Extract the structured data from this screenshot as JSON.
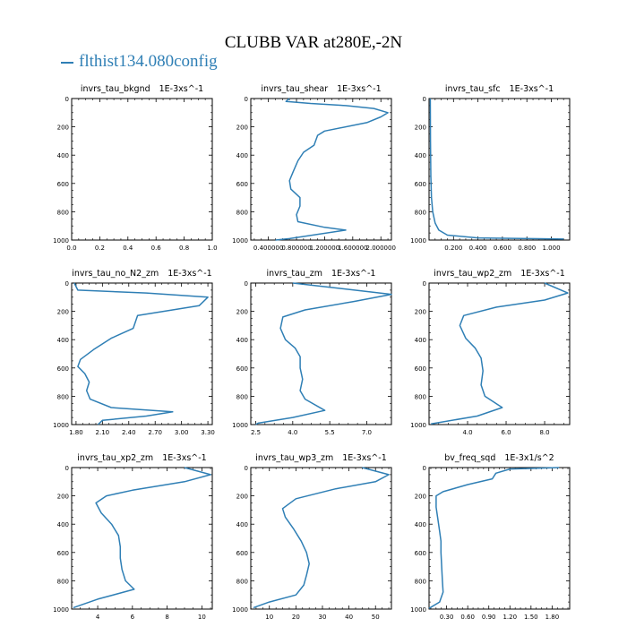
{
  "title": "CLUBB VAR at280E,-2N",
  "legend": {
    "label": "flthist134.080config",
    "color": "#2f7fb5"
  },
  "chart_data": [
    {
      "type": "line",
      "title": "invrs_tau_bkgnd",
      "units": "1E-3xs^-1",
      "xlim": [
        0,
        1.0
      ],
      "ylim": [
        1000,
        0
      ],
      "xticks": [
        0.0,
        0.2,
        0.4,
        0.6,
        0.8,
        1.0
      ],
      "xtick_labels": [
        "0.0",
        "0.2",
        "0.4",
        "0.6",
        "0.8",
        "1.0"
      ],
      "yticks": [
        0,
        200,
        400,
        600,
        800,
        1000
      ],
      "ytick_labels": [
        "0",
        "200",
        "400",
        "600",
        "800",
        "1000"
      ],
      "series": [
        {
          "points": []
        }
      ]
    },
    {
      "type": "line",
      "title": "invrs_tau_shear",
      "units": "1E-3xs^-1",
      "xlim": [
        0.15,
        2.15
      ],
      "ylim": [
        1000,
        0
      ],
      "xticks": [
        0.4,
        0.8,
        1.2,
        1.6,
        2.0
      ],
      "xtick_labels": [
        "0.400000",
        "0.800000",
        "1.200000",
        "1.600000",
        "2.000000"
      ],
      "yticks": [
        0,
        200,
        400,
        600,
        800,
        1000
      ],
      "ytick_labels": [
        "0",
        "200",
        "400",
        "600",
        "800",
        "1000"
      ],
      "series": [
        {
          "points": [
            [
              0.7,
              0
            ],
            [
              0.65,
              20
            ],
            [
              1.0,
              35
            ],
            [
              1.5,
              50
            ],
            [
              1.9,
              70
            ],
            [
              2.1,
              100
            ],
            [
              2.0,
              130
            ],
            [
              1.8,
              170
            ],
            [
              1.2,
              230
            ],
            [
              1.1,
              260
            ],
            [
              1.05,
              330
            ],
            [
              0.9,
              380
            ],
            [
              0.82,
              440
            ],
            [
              0.75,
              520
            ],
            [
              0.7,
              580
            ],
            [
              0.72,
              640
            ],
            [
              0.85,
              700
            ],
            [
              0.85,
              760
            ],
            [
              0.8,
              820
            ],
            [
              0.82,
              870
            ],
            [
              1.2,
              910
            ],
            [
              1.5,
              930
            ],
            [
              0.7,
              990
            ],
            [
              0.5,
              1000
            ]
          ]
        }
      ]
    },
    {
      "type": "line",
      "title": "invrs_tau_sfc",
      "units": "1E-3xs^-1",
      "xlim": [
        0.0,
        1.15
      ],
      "ylim": [
        1000,
        0
      ],
      "xticks": [
        0.2,
        0.4,
        0.6,
        0.8,
        1.0
      ],
      "xtick_labels": [
        "0.200",
        "0.400",
        "0.600",
        "0.800",
        "1.000"
      ],
      "yticks": [
        0,
        200,
        400,
        600,
        800,
        1000
      ],
      "ytick_labels": [
        "0",
        "200",
        "400",
        "600",
        "800",
        "1000"
      ],
      "series": [
        {
          "points": [
            [
              0.01,
              0
            ],
            [
              0.012,
              300
            ],
            [
              0.015,
              550
            ],
            [
              0.02,
              700
            ],
            [
              0.03,
              800
            ],
            [
              0.05,
              880
            ],
            [
              0.08,
              930
            ],
            [
              0.15,
              965
            ],
            [
              0.4,
              985
            ],
            [
              1.1,
              993
            ]
          ]
        }
      ]
    },
    {
      "type": "line",
      "title": "invrs_tau_no_N2_zm",
      "units": "1E-3xs^-1",
      "xlim": [
        1.75,
        3.35
      ],
      "ylim": [
        1000,
        0
      ],
      "xticks": [
        1.8,
        2.1,
        2.4,
        2.7,
        3.0,
        3.3
      ],
      "xtick_labels": [
        "1.80",
        "2.10",
        "2.40",
        "2.70",
        "3.00",
        "3.30"
      ],
      "yticks": [
        0,
        200,
        400,
        600,
        800,
        1000
      ],
      "ytick_labels": [
        "0",
        "200",
        "400",
        "600",
        "800",
        "1000"
      ],
      "series": [
        {
          "points": [
            [
              1.78,
              0
            ],
            [
              1.82,
              50
            ],
            [
              2.6,
              70
            ],
            [
              3.3,
              100
            ],
            [
              3.2,
              160
            ],
            [
              2.5,
              230
            ],
            [
              2.45,
              320
            ],
            [
              2.2,
              390
            ],
            [
              2.0,
              470
            ],
            [
              1.85,
              540
            ],
            [
              1.82,
              590
            ],
            [
              1.9,
              640
            ],
            [
              1.95,
              700
            ],
            [
              1.92,
              760
            ],
            [
              1.96,
              820
            ],
            [
              2.2,
              880
            ],
            [
              2.9,
              910
            ],
            [
              2.6,
              940
            ],
            [
              2.1,
              970
            ],
            [
              2.05,
              1000
            ]
          ]
        }
      ]
    },
    {
      "type": "line",
      "title": "invrs_tau_zm",
      "units": "1E-3xs^-1",
      "xlim": [
        2.3,
        8.0
      ],
      "ylim": [
        1000,
        0
      ],
      "xticks": [
        2.5,
        4.0,
        5.5,
        7.0
      ],
      "xtick_labels": [
        "2.5",
        "4.0",
        "5.5",
        "7.0"
      ],
      "yticks": [
        0,
        200,
        400,
        600,
        800,
        1000
      ],
      "ytick_labels": [
        "0",
        "200",
        "400",
        "600",
        "800",
        "1000"
      ],
      "series": [
        {
          "points": [
            [
              4.0,
              0
            ],
            [
              6.0,
              40
            ],
            [
              8.0,
              80
            ],
            [
              6.5,
              130
            ],
            [
              4.5,
              190
            ],
            [
              3.6,
              240
            ],
            [
              3.5,
              320
            ],
            [
              3.7,
              400
            ],
            [
              4.1,
              460
            ],
            [
              4.3,
              520
            ],
            [
              4.3,
              600
            ],
            [
              4.4,
              680
            ],
            [
              4.3,
              760
            ],
            [
              4.5,
              820
            ],
            [
              5.3,
              900
            ],
            [
              4.0,
              950
            ],
            [
              2.6,
              990
            ],
            [
              2.5,
              1000
            ]
          ]
        }
      ]
    },
    {
      "type": "line",
      "title": "invrs_tau_wp2_zm",
      "units": "1E-3xs^-1",
      "xlim": [
        2.0,
        9.3
      ],
      "ylim": [
        1000,
        0
      ],
      "xticks": [
        4.0,
        6.0,
        8.0
      ],
      "xtick_labels": [
        "4.0",
        "6.0",
        "8.0"
      ],
      "yticks": [
        0,
        200,
        400,
        600,
        800,
        1000
      ],
      "ytick_labels": [
        "0",
        "200",
        "400",
        "600",
        "800",
        "1000"
      ],
      "series": [
        {
          "points": [
            [
              8.0,
              0
            ],
            [
              9.2,
              70
            ],
            [
              8.0,
              120
            ],
            [
              5.5,
              170
            ],
            [
              3.8,
              230
            ],
            [
              3.6,
              300
            ],
            [
              3.9,
              390
            ],
            [
              4.4,
              460
            ],
            [
              4.7,
              530
            ],
            [
              4.8,
              620
            ],
            [
              4.7,
              720
            ],
            [
              4.9,
              800
            ],
            [
              5.8,
              880
            ],
            [
              4.5,
              940
            ],
            [
              2.1,
              995
            ]
          ]
        }
      ]
    },
    {
      "type": "line",
      "title": "invrs_tau_xp2_zm",
      "units": "1E-3xs^-1",
      "xlim": [
        2.5,
        10.6
      ],
      "ylim": [
        1000,
        0
      ],
      "xticks": [
        4,
        6,
        8,
        10
      ],
      "xtick_labels": [
        "4",
        "6",
        "8",
        "10"
      ],
      "yticks": [
        0,
        200,
        400,
        600,
        800,
        1000
      ],
      "ytick_labels": [
        "0",
        "200",
        "400",
        "600",
        "800",
        "1000"
      ],
      "series": [
        {
          "points": [
            [
              9.0,
              0
            ],
            [
              10.5,
              50
            ],
            [
              9.0,
              100
            ],
            [
              6.0,
              160
            ],
            [
              4.5,
              200
            ],
            [
              3.9,
              250
            ],
            [
              4.2,
              320
            ],
            [
              4.8,
              400
            ],
            [
              5.2,
              480
            ],
            [
              5.3,
              560
            ],
            [
              5.3,
              640
            ],
            [
              5.4,
              720
            ],
            [
              5.6,
              800
            ],
            [
              6.1,
              860
            ],
            [
              4.0,
              930
            ],
            [
              2.6,
              990
            ]
          ]
        }
      ]
    },
    {
      "type": "line",
      "title": "invrs_tau_wp3_zm",
      "units": "1E-3xs^-1",
      "xlim": [
        3,
        56
      ],
      "ylim": [
        1000,
        0
      ],
      "xticks": [
        10,
        20,
        30,
        40,
        50
      ],
      "xtick_labels": [
        "10",
        "20",
        "30",
        "40",
        "50"
      ],
      "yticks": [
        0,
        200,
        400,
        600,
        800,
        1000
      ],
      "ytick_labels": [
        "0",
        "200",
        "400",
        "600",
        "800",
        "1000"
      ],
      "series": [
        {
          "points": [
            [
              45,
              0
            ],
            [
              55,
              50
            ],
            [
              50,
              100
            ],
            [
              35,
              150
            ],
            [
              20,
              220
            ],
            [
              15,
              290
            ],
            [
              16,
              350
            ],
            [
              19,
              430
            ],
            [
              22,
              520
            ],
            [
              24,
              600
            ],
            [
              25,
              680
            ],
            [
              24,
              760
            ],
            [
              23,
              830
            ],
            [
              20,
              900
            ],
            [
              10,
              950
            ],
            [
              4,
              990
            ]
          ]
        }
      ]
    },
    {
      "type": "line",
      "title": "bv_freq_sqd",
      "units": "1E-3x1/s^2",
      "xlim": [
        0.05,
        2.05
      ],
      "ylim": [
        1000,
        0
      ],
      "xticks": [
        0.3,
        0.6,
        0.9,
        1.2,
        1.5,
        1.8
      ],
      "xtick_labels": [
        "0.30",
        "0.60",
        "0.90",
        "1.20",
        "1.50",
        "1.80"
      ],
      "yticks": [
        0,
        200,
        400,
        600,
        800,
        1000
      ],
      "ytick_labels": [
        "0",
        "200",
        "400",
        "600",
        "800",
        "1000"
      ],
      "series": [
        {
          "points": [
            [
              1.9,
              0
            ],
            [
              1.2,
              10
            ],
            [
              1.0,
              40
            ],
            [
              0.95,
              80
            ],
            [
              0.6,
              120
            ],
            [
              0.25,
              170
            ],
            [
              0.15,
              200
            ],
            [
              0.15,
              280
            ],
            [
              0.18,
              380
            ],
            [
              0.2,
              450
            ],
            [
              0.22,
              520
            ],
            [
              0.22,
              600
            ],
            [
              0.23,
              700
            ],
            [
              0.24,
              800
            ],
            [
              0.25,
              880
            ],
            [
              0.2,
              950
            ],
            [
              0.05,
              995
            ]
          ]
        }
      ]
    }
  ]
}
